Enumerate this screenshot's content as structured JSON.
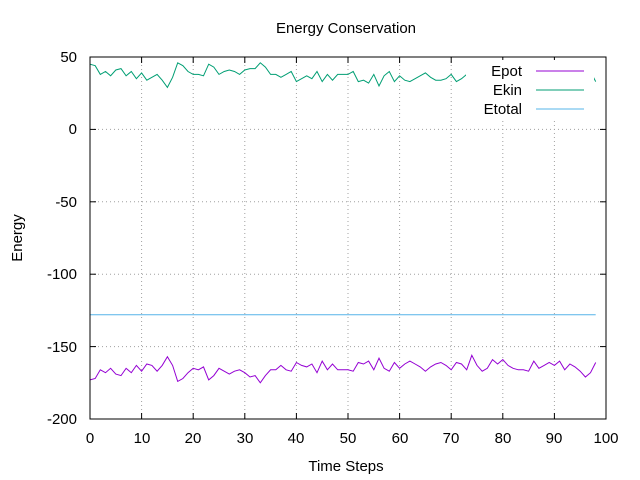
{
  "chart_data": {
    "type": "line",
    "title": "Energy Conservation",
    "xlabel": "Time Steps",
    "ylabel": "Energy",
    "xlim": [
      0,
      100
    ],
    "ylim": [
      -200,
      50
    ],
    "xticks": [
      "0",
      "10",
      "20",
      "30",
      "40",
      "50",
      "60",
      "70",
      "80",
      "90",
      "100"
    ],
    "yticks": [
      "50",
      "0",
      "-50",
      "-100",
      "-150",
      "-200"
    ],
    "grid": true,
    "legend_position": "top-right",
    "series": [
      {
        "name": "Epot",
        "color": "#9400d3",
        "x": [
          0,
          1,
          2,
          3,
          4,
          5,
          6,
          7,
          8,
          9,
          10,
          11,
          12,
          13,
          14,
          15,
          16,
          17,
          18,
          19,
          20,
          21,
          22,
          23,
          24,
          25,
          26,
          27,
          28,
          29,
          30,
          31,
          32,
          33,
          34,
          35,
          36,
          37,
          38,
          39,
          40,
          41,
          42,
          43,
          44,
          45,
          46,
          47,
          48,
          49,
          50,
          51,
          52,
          53,
          54,
          55,
          56,
          57,
          58,
          59,
          60,
          61,
          62,
          63,
          64,
          65,
          66,
          67,
          68,
          69,
          70,
          71,
          72,
          73,
          74,
          75,
          76,
          77,
          78,
          79,
          80,
          81,
          82,
          83,
          84,
          85,
          86,
          87,
          88,
          89,
          90,
          91,
          92,
          93,
          94,
          95,
          96,
          97,
          98
        ],
        "y": [
          -173,
          -172,
          -166,
          -168,
          -165,
          -169,
          -170,
          -165,
          -168,
          -163,
          -167,
          -162,
          -163,
          -167,
          -163,
          -157,
          -163,
          -174,
          -172,
          -168,
          -165,
          -166,
          -164,
          -173,
          -170,
          -165,
          -167,
          -169,
          -167,
          -166,
          -168,
          -171,
          -170,
          -175,
          -170,
          -166,
          -166,
          -163,
          -166,
          -167,
          -161,
          -163,
          -164,
          -162,
          -168,
          -160,
          -166,
          -162,
          -166,
          -166,
          -166,
          -167,
          -161,
          -162,
          -160,
          -166,
          -158,
          -165,
          -167,
          -161,
          -165,
          -162,
          -160,
          -162,
          -164,
          -167,
          -164,
          -162,
          -161,
          -163,
          -166,
          -161,
          -162,
          -166,
          -156,
          -163,
          -167,
          -165,
          -159,
          -162,
          -159,
          -163,
          -165,
          -166,
          -166,
          -167,
          -160,
          -165,
          -163,
          -161,
          -163,
          -160,
          -166,
          -162,
          -164,
          -167,
          -171,
          -168,
          -161
        ]
      },
      {
        "name": "Ekin",
        "color": "#009e73",
        "x": [
          0,
          1,
          2,
          3,
          4,
          5,
          6,
          7,
          8,
          9,
          10,
          11,
          12,
          13,
          14,
          15,
          16,
          17,
          18,
          19,
          20,
          21,
          22,
          23,
          24,
          25,
          26,
          27,
          28,
          29,
          30,
          31,
          32,
          33,
          34,
          35,
          36,
          37,
          38,
          39,
          40,
          41,
          42,
          43,
          44,
          45,
          46,
          47,
          48,
          49,
          50,
          51,
          52,
          53,
          54,
          55,
          56,
          57,
          58,
          59,
          60,
          61,
          62,
          63,
          64,
          65,
          66,
          67,
          68,
          69,
          70,
          71,
          72,
          73,
          74,
          75,
          76,
          77,
          78,
          79,
          80,
          81,
          82,
          83,
          84,
          85,
          86,
          87,
          88,
          89,
          90,
          91,
          92,
          93,
          94,
          95,
          96,
          97,
          98
        ],
        "y": [
          45,
          44,
          38,
          40,
          37,
          41,
          42,
          37,
          40,
          35,
          39,
          34,
          36,
          38,
          34,
          29,
          36,
          46,
          44,
          40,
          38,
          38,
          37,
          45,
          43,
          38,
          40,
          41,
          40,
          38,
          41,
          42,
          42,
          46,
          43,
          38,
          38,
          36,
          38,
          40,
          33,
          35,
          37,
          35,
          40,
          33,
          38,
          34,
          38,
          38,
          38,
          40,
          33,
          34,
          32,
          38,
          30,
          37,
          40,
          33,
          37,
          34,
          33,
          35,
          37,
          39,
          36,
          34,
          34,
          35,
          38,
          33,
          35,
          38,
          28,
          35,
          39,
          37,
          32,
          35,
          31,
          36,
          37,
          38,
          38,
          40,
          32,
          37,
          35,
          33,
          35,
          32,
          38,
          34,
          36,
          39,
          43,
          40,
          33
        ]
      },
      {
        "name": "Etotal",
        "color": "#56b4e9",
        "x": [
          0,
          98
        ],
        "y": [
          -128,
          -128
        ]
      }
    ]
  }
}
